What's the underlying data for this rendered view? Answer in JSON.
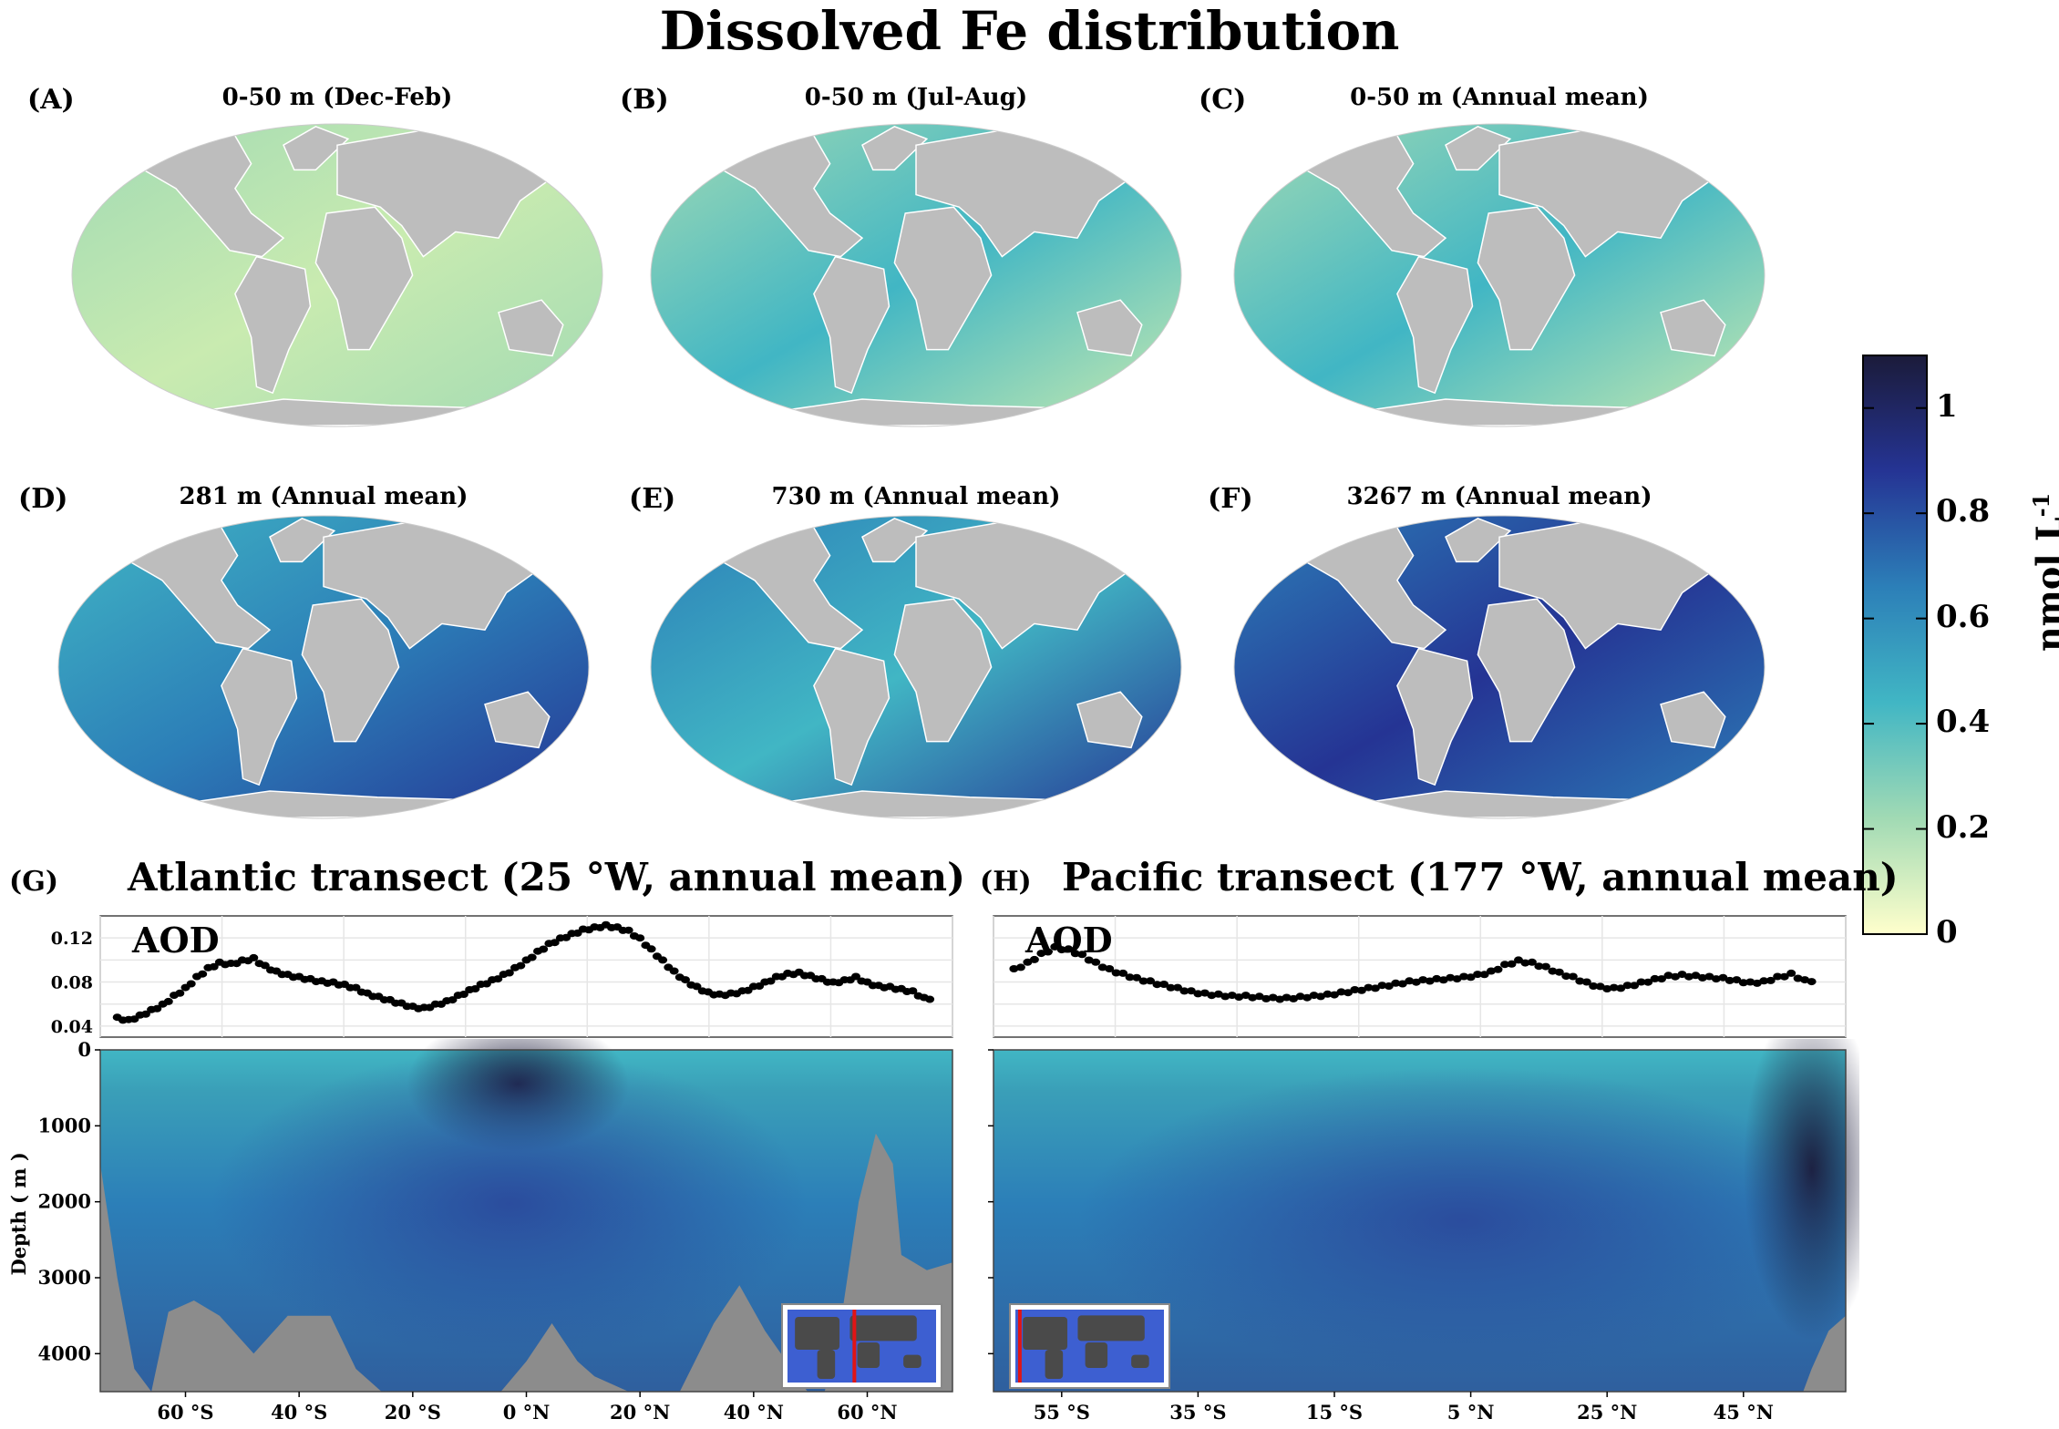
{
  "figure": {
    "title": "Dissolved Fe distribution"
  },
  "maps": [
    {
      "label": "(A)",
      "title": "0-50 m (Dec-Feb)",
      "level": "low"
    },
    {
      "label": "(B)",
      "title": "0-50 m (Jul-Aug)",
      "level": "low-mid"
    },
    {
      "label": "(C)",
      "title": "0-50 m (Annual mean)",
      "level": "low-mid"
    },
    {
      "label": "(D)",
      "title": "281 m (Annual mean)",
      "level": "mid"
    },
    {
      "label": "(E)",
      "title": "730 m (Annual mean)",
      "level": "mid-high"
    },
    {
      "label": "(F)",
      "title": "3267 m (Annual mean)",
      "level": "high"
    }
  ],
  "colorbar": {
    "label": "nmol L",
    "label_superscript": "-1",
    "ticks": [
      "1",
      "0.8",
      "0.6",
      "0.4",
      "0.2",
      "0"
    ],
    "range": [
      0,
      1.1
    ],
    "colors": [
      "#ffffcc",
      "#a1dab4",
      "#41b6c4",
      "#2c7fb8",
      "#253494",
      "#1b1b3a"
    ]
  },
  "chart_data": [
    {
      "type": "scatter",
      "panel": "(G)",
      "title": "Atlantic transect (25 °W, annual mean)",
      "series_label": "AOD",
      "x_ticks": [
        "60 °S",
        "40 °S",
        "20 °S",
        "0 °N",
        "20 °N",
        "40 °N",
        "60 °N"
      ],
      "x_range": [
        -75,
        75
      ],
      "y_ticks": [
        "0.12",
        "0.08",
        "0.04"
      ],
      "y_range": [
        0.03,
        0.14
      ],
      "x": [
        -72,
        -70,
        -68,
        -66,
        -64,
        -62,
        -60,
        -58,
        -56,
        -54,
        -52,
        -50,
        -48,
        -46,
        -44,
        -42,
        -40,
        -38,
        -36,
        -34,
        -32,
        -30,
        -28,
        -26,
        -24,
        -22,
        -20,
        -18,
        -16,
        -14,
        -12,
        -10,
        -8,
        -6,
        -4,
        -2,
        0,
        2,
        4,
        6,
        8,
        10,
        12,
        14,
        16,
        18,
        20,
        22,
        24,
        26,
        28,
        30,
        32,
        34,
        36,
        38,
        40,
        42,
        44,
        46,
        48,
        50,
        52,
        54,
        56,
        58,
        60,
        62,
        64,
        66,
        68,
        70
      ],
      "y": [
        0.048,
        0.046,
        0.05,
        0.055,
        0.06,
        0.068,
        0.075,
        0.085,
        0.093,
        0.098,
        0.097,
        0.1,
        0.102,
        0.095,
        0.09,
        0.087,
        0.085,
        0.083,
        0.081,
        0.08,
        0.078,
        0.075,
        0.07,
        0.067,
        0.064,
        0.061,
        0.058,
        0.057,
        0.06,
        0.063,
        0.068,
        0.073,
        0.078,
        0.082,
        0.087,
        0.093,
        0.1,
        0.108,
        0.115,
        0.12,
        0.124,
        0.128,
        0.13,
        0.132,
        0.13,
        0.127,
        0.12,
        0.11,
        0.1,
        0.09,
        0.082,
        0.076,
        0.071,
        0.069,
        0.07,
        0.072,
        0.076,
        0.08,
        0.085,
        0.088,
        0.089,
        0.086,
        0.083,
        0.08,
        0.082,
        0.085,
        0.08,
        0.077,
        0.076,
        0.074,
        0.072,
        0.066
      ],
      "depth_ylabel": "Depth ( m )",
      "depth_ticks": [
        "0",
        "1000",
        "2000",
        "3000",
        "4000"
      ],
      "depth_range": [
        0,
        4500
      ]
    },
    {
      "type": "scatter",
      "panel": "(H)",
      "title": "Pacific transect (177 °W, annual mean)",
      "series_label": "AOD",
      "x_ticks": [
        "55 °S",
        "35 °S",
        "15 °S",
        "5 °N",
        "25 °N",
        "45 °N"
      ],
      "x_range": [
        -65,
        60
      ],
      "y_range": [
        0.03,
        0.14
      ],
      "x": [
        -62,
        -60,
        -58,
        -56,
        -54,
        -52,
        -50,
        -48,
        -46,
        -44,
        -42,
        -40,
        -38,
        -36,
        -34,
        -32,
        -30,
        -28,
        -26,
        -24,
        -22,
        -20,
        -18,
        -16,
        -14,
        -12,
        -10,
        -8,
        -6,
        -4,
        -2,
        0,
        2,
        4,
        6,
        8,
        10,
        12,
        14,
        16,
        18,
        20,
        22,
        24,
        26,
        28,
        30,
        32,
        34,
        36,
        38,
        40,
        42,
        44,
        46,
        48,
        50,
        52,
        54
      ],
      "y": [
        0.092,
        0.098,
        0.106,
        0.112,
        0.11,
        0.105,
        0.098,
        0.092,
        0.088,
        0.084,
        0.081,
        0.078,
        0.075,
        0.072,
        0.07,
        0.069,
        0.068,
        0.068,
        0.067,
        0.066,
        0.066,
        0.067,
        0.068,
        0.069,
        0.071,
        0.073,
        0.075,
        0.077,
        0.079,
        0.081,
        0.082,
        0.083,
        0.084,
        0.085,
        0.087,
        0.09,
        0.096,
        0.1,
        0.098,
        0.094,
        0.089,
        0.085,
        0.08,
        0.076,
        0.075,
        0.077,
        0.08,
        0.083,
        0.086,
        0.087,
        0.086,
        0.085,
        0.084,
        0.082,
        0.08,
        0.081,
        0.085,
        0.088,
        0.082
      ],
      "depth_ticks": [
        "0",
        "1000",
        "2000",
        "3000",
        "4000"
      ],
      "depth_range": [
        0,
        4500
      ]
    }
  ]
}
